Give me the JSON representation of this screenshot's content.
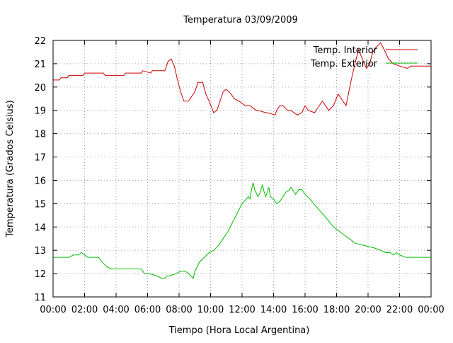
{
  "chart_data": {
    "type": "line",
    "title": "Temperatura 03/09/2009",
    "xlabel": "Tiempo (Hora Local Argentina)",
    "ylabel": "Temperatura (Grados Celsius)",
    "x_unit": "hours",
    "xlim": [
      0,
      24
    ],
    "ylim": [
      11,
      22
    ],
    "x_ticks": [
      {
        "value": 0,
        "label": "00:00"
      },
      {
        "value": 2,
        "label": "02:00"
      },
      {
        "value": 4,
        "label": "04:00"
      },
      {
        "value": 6,
        "label": "06:00"
      },
      {
        "value": 8,
        "label": "08:00"
      },
      {
        "value": 10,
        "label": "10:00"
      },
      {
        "value": 12,
        "label": "12:00"
      },
      {
        "value": 14,
        "label": "14:00"
      },
      {
        "value": 16,
        "label": "16:00"
      },
      {
        "value": 18,
        "label": "18:00"
      },
      {
        "value": 20,
        "label": "20:00"
      },
      {
        "value": 22,
        "label": "22:00"
      },
      {
        "value": 24,
        "label": "00:00"
      }
    ],
    "y_ticks": [
      11,
      12,
      13,
      14,
      15,
      16,
      17,
      18,
      19,
      20,
      21,
      22
    ],
    "grid": true,
    "legend_position": "top-right",
    "series": [
      {
        "name": "Temp. Interior",
        "color": "#cc0000",
        "x": [
          0,
          0.4,
          0.5,
          0.9,
          1.0,
          1.9,
          2.0,
          3.2,
          3.3,
          4.5,
          4.6,
          5.6,
          5.7,
          6.2,
          6.3,
          7.1,
          7.3,
          7.5,
          7.7,
          7.9,
          8.1,
          8.3,
          8.6,
          8.8,
          9.0,
          9.2,
          9.5,
          9.7,
          9.9,
          10.2,
          10.4,
          10.6,
          10.8,
          11.0,
          11.3,
          11.5,
          11.8,
          12.0,
          12.2,
          12.5,
          12.9,
          13.0,
          13.5,
          13.6,
          14.1,
          14.2,
          14.4,
          14.6,
          14.9,
          15.1,
          15.5,
          15.8,
          16.0,
          16.2,
          16.6,
          16.8,
          17.1,
          17.5,
          17.8,
          18.1,
          18.4,
          18.6,
          18.9,
          19.2,
          19.4,
          19.7,
          19.9,
          20.1,
          20.3,
          20.5,
          20.8,
          21.1,
          21.3,
          21.6,
          22.0,
          22.5,
          22.7,
          24.0
        ],
        "values": [
          20.3,
          20.3,
          20.4,
          20.4,
          20.5,
          20.5,
          20.6,
          20.6,
          20.5,
          20.5,
          20.6,
          20.6,
          20.7,
          20.6,
          20.7,
          20.7,
          21.1,
          21.2,
          20.9,
          20.3,
          19.8,
          19.4,
          19.4,
          19.6,
          19.8,
          20.2,
          20.2,
          19.7,
          19.4,
          18.9,
          19.0,
          19.4,
          19.8,
          19.9,
          19.7,
          19.5,
          19.4,
          19.3,
          19.2,
          19.2,
          19.0,
          19.0,
          18.9,
          18.9,
          18.8,
          19.0,
          19.2,
          19.2,
          19.0,
          19.0,
          18.8,
          18.9,
          19.2,
          19.0,
          18.9,
          19.1,
          19.4,
          19.0,
          19.2,
          19.7,
          19.4,
          19.2,
          20.2,
          21.1,
          21.6,
          21.1,
          20.8,
          21.0,
          21.5,
          21.7,
          21.9,
          21.5,
          21.2,
          21.0,
          20.9,
          20.8,
          20.9,
          20.9
        ]
      },
      {
        "name": "Temp. Exterior",
        "color": "#00bb00",
        "x": [
          0,
          1.0,
          1.3,
          1.6,
          1.8,
          2.0,
          2.2,
          2.9,
          3.1,
          3.4,
          3.7,
          3.9,
          4.2,
          5.6,
          5.8,
          6.1,
          6.6,
          6.9,
          7.1,
          7.2,
          7.4,
          7.8,
          8.1,
          8.4,
          8.6,
          8.9,
          9.0,
          9.3,
          9.6,
          9.9,
          10.2,
          10.5,
          10.8,
          11.1,
          11.4,
          11.7,
          12.0,
          12.4,
          12.5,
          12.6,
          12.7,
          12.8,
          13.0,
          13.1,
          13.3,
          13.4,
          13.5,
          13.6,
          13.7,
          13.8,
          14.0,
          14.2,
          14.4,
          14.6,
          14.8,
          15.0,
          15.1,
          15.3,
          15.4,
          15.6,
          15.8,
          16.0,
          16.3,
          16.8,
          17.2,
          17.8,
          18.4,
          19.2,
          19.8,
          20.4,
          20.8,
          21.1,
          21.4,
          21.6,
          21.8,
          22.0,
          22.4,
          22.8,
          23.7,
          24.0
        ],
        "values": [
          12.7,
          12.7,
          12.8,
          12.8,
          12.9,
          12.8,
          12.7,
          12.7,
          12.5,
          12.3,
          12.2,
          12.2,
          12.2,
          12.2,
          12.0,
          12.0,
          11.9,
          11.8,
          11.8,
          11.9,
          11.9,
          12.0,
          12.1,
          12.1,
          12.0,
          11.8,
          12.1,
          12.5,
          12.7,
          12.9,
          13.0,
          13.2,
          13.5,
          13.8,
          14.2,
          14.6,
          15.0,
          15.3,
          15.2,
          15.6,
          15.9,
          15.6,
          15.3,
          15.4,
          15.8,
          15.5,
          15.3,
          15.5,
          15.7,
          15.3,
          15.2,
          15.0,
          15.1,
          15.3,
          15.5,
          15.6,
          15.7,
          15.5,
          15.4,
          15.6,
          15.6,
          15.4,
          15.2,
          14.8,
          14.5,
          14.0,
          13.7,
          13.3,
          13.2,
          13.1,
          13.0,
          12.9,
          12.9,
          12.8,
          12.9,
          12.8,
          12.7,
          12.7,
          12.7,
          12.7
        ]
      }
    ]
  }
}
